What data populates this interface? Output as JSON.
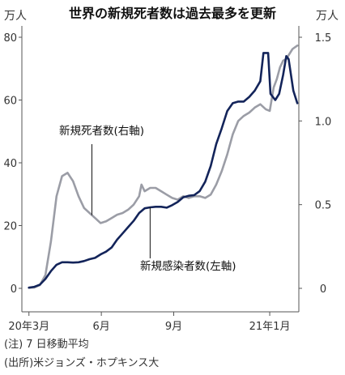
{
  "chart_data": {
    "type": "line",
    "title": "世界の新規死者数は過去最多を更新",
    "left_unit": "万人",
    "right_unit": "万人",
    "ylim_left": [
      0,
      80
    ],
    "ylim_right": [
      0,
      1.5
    ],
    "yticks_left": [
      "0",
      "20",
      "40",
      "60",
      "80"
    ],
    "yticks_right": [
      "0",
      "0.5",
      "1.0",
      "1.5"
    ],
    "x_ticks": [
      "20年3月",
      "6月",
      "9月",
      "21年1月"
    ],
    "x_tick_dates": [
      "2020-03-01",
      "2020-06-01",
      "2020-09-01",
      "2021-01-01"
    ],
    "series": [
      {
        "name": "新規感染者数(左軸)",
        "axis": "left",
        "color": "#13245a",
        "points": [
          [
            "2020-03-01",
            0.2
          ],
          [
            "2020-03-08",
            0.5
          ],
          [
            "2020-03-15",
            1.2
          ],
          [
            "2020-03-22",
            3.0
          ],
          [
            "2020-03-29",
            5.5
          ],
          [
            "2020-04-05",
            7.5
          ],
          [
            "2020-04-12",
            8.3
          ],
          [
            "2020-04-19",
            8.3
          ],
          [
            "2020-04-26",
            8.2
          ],
          [
            "2020-05-03",
            8.3
          ],
          [
            "2020-05-10",
            8.7
          ],
          [
            "2020-05-17",
            9.3
          ],
          [
            "2020-05-24",
            9.7
          ],
          [
            "2020-05-31",
            10.8
          ],
          [
            "2020-06-07",
            11.7
          ],
          [
            "2020-06-14",
            13.0
          ],
          [
            "2020-06-21",
            15.5
          ],
          [
            "2020-06-28",
            17.5
          ],
          [
            "2020-07-05",
            19.5
          ],
          [
            "2020-07-12",
            21.5
          ],
          [
            "2020-07-19",
            24.0
          ],
          [
            "2020-07-26",
            25.5
          ],
          [
            "2020-08-02",
            25.8
          ],
          [
            "2020-08-09",
            26.0
          ],
          [
            "2020-08-16",
            26.0
          ],
          [
            "2020-08-23",
            25.7
          ],
          [
            "2020-08-30",
            26.5
          ],
          [
            "2020-09-06",
            27.5
          ],
          [
            "2020-09-13",
            29.0
          ],
          [
            "2020-09-20",
            29.5
          ],
          [
            "2020-09-27",
            29.7
          ],
          [
            "2020-10-04",
            31.0
          ],
          [
            "2020-10-11",
            34.0
          ],
          [
            "2020-10-18",
            39.0
          ],
          [
            "2020-10-25",
            46.0
          ],
          [
            "2020-11-01",
            51.0
          ],
          [
            "2020-11-08",
            56.5
          ],
          [
            "2020-11-15",
            59.0
          ],
          [
            "2020-11-22",
            59.5
          ],
          [
            "2020-11-29",
            59.5
          ],
          [
            "2020-12-06",
            61.0
          ],
          [
            "2020-12-13",
            63.0
          ],
          [
            "2020-12-20",
            66.0
          ],
          [
            "2020-12-24",
            75.0
          ],
          [
            "2020-12-30",
            75.0
          ],
          [
            "2021-01-02",
            62.0
          ],
          [
            "2021-01-08",
            60.0
          ],
          [
            "2021-01-13",
            62.0
          ],
          [
            "2021-01-18",
            68.0
          ],
          [
            "2021-01-22",
            74.0
          ],
          [
            "2021-01-25",
            73.0
          ],
          [
            "2021-01-31",
            63.0
          ],
          [
            "2021-02-05",
            59.0
          ]
        ]
      },
      {
        "name": "新規死者数(右軸)",
        "axis": "right",
        "color": "#9b9da6",
        "points": [
          [
            "2020-03-01",
            0.004
          ],
          [
            "2020-03-08",
            0.005
          ],
          [
            "2020-03-15",
            0.02
          ],
          [
            "2020-03-22",
            0.08
          ],
          [
            "2020-03-29",
            0.28
          ],
          [
            "2020-04-05",
            0.55
          ],
          [
            "2020-04-12",
            0.67
          ],
          [
            "2020-04-19",
            0.69
          ],
          [
            "2020-04-26",
            0.64
          ],
          [
            "2020-05-03",
            0.55
          ],
          [
            "2020-05-10",
            0.48
          ],
          [
            "2020-05-17",
            0.45
          ],
          [
            "2020-05-24",
            0.42
          ],
          [
            "2020-05-31",
            0.39
          ],
          [
            "2020-06-07",
            0.4
          ],
          [
            "2020-06-14",
            0.42
          ],
          [
            "2020-06-21",
            0.44
          ],
          [
            "2020-06-28",
            0.45
          ],
          [
            "2020-07-05",
            0.47
          ],
          [
            "2020-07-12",
            0.5
          ],
          [
            "2020-07-19",
            0.55
          ],
          [
            "2020-07-22",
            0.62
          ],
          [
            "2020-07-26",
            0.58
          ],
          [
            "2020-08-02",
            0.6
          ],
          [
            "2020-08-09",
            0.6
          ],
          [
            "2020-08-16",
            0.58
          ],
          [
            "2020-08-23",
            0.56
          ],
          [
            "2020-08-30",
            0.54
          ],
          [
            "2020-09-06",
            0.53
          ],
          [
            "2020-09-13",
            0.55
          ],
          [
            "2020-09-20",
            0.54
          ],
          [
            "2020-09-27",
            0.55
          ],
          [
            "2020-10-04",
            0.55
          ],
          [
            "2020-10-11",
            0.54
          ],
          [
            "2020-10-18",
            0.56
          ],
          [
            "2020-10-25",
            0.62
          ],
          [
            "2020-11-01",
            0.7
          ],
          [
            "2020-11-08",
            0.8
          ],
          [
            "2020-11-15",
            0.92
          ],
          [
            "2020-11-22",
            1.0
          ],
          [
            "2020-11-29",
            1.03
          ],
          [
            "2020-12-06",
            1.05
          ],
          [
            "2020-12-13",
            1.08
          ],
          [
            "2020-12-20",
            1.1
          ],
          [
            "2020-12-27",
            1.07
          ],
          [
            "2021-01-01",
            1.06
          ],
          [
            "2021-01-06",
            1.2
          ],
          [
            "2021-01-10",
            1.25
          ],
          [
            "2021-01-14",
            1.32
          ],
          [
            "2021-01-18",
            1.36
          ],
          [
            "2021-01-22",
            1.37
          ],
          [
            "2021-01-26",
            1.4
          ],
          [
            "2021-01-30",
            1.43
          ],
          [
            "2021-02-05",
            1.45
          ]
        ]
      }
    ],
    "annotations": [
      {
        "text": "新規死者数(右軸)",
        "series": "新規死者数(右軸)",
        "at": "2020-05-20"
      },
      {
        "text": "新規感染者数(左軸)",
        "series": "新規感染者数(左軸)",
        "at": "2020-08-02"
      }
    ],
    "grid": false,
    "legend": "none"
  },
  "notes": [
    "(注) 7 日移動平均",
    "(出所)米ジョンズ・ホプキンス大"
  ]
}
